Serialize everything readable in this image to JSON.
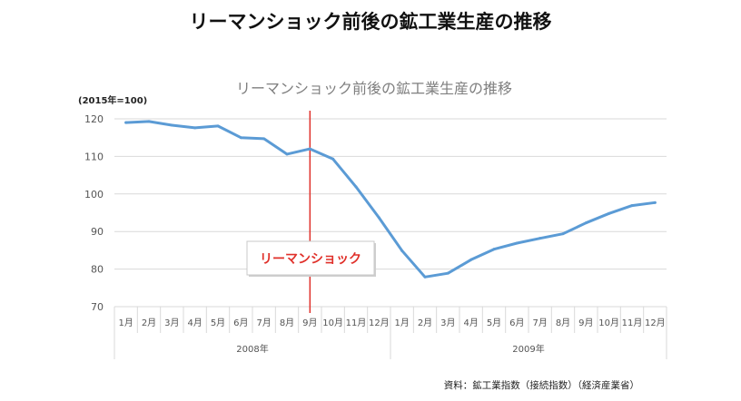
{
  "page_title": "リーマンショック前後の鉱工業生産の推移",
  "source_note": "資料：鉱工業指数（接続指数）（経済産業省）",
  "colors": {
    "line": "#5b9bd5",
    "event_line": "#e0302a",
    "annotation_text": "#e0302a",
    "grid": "#d9d9d9",
    "axis_text": "#555555"
  },
  "chart_data": {
    "type": "line",
    "title": "リーマンショック前後の鉱工業生産の推移",
    "ylabel": "(2015年=100)",
    "ylim": [
      70,
      120
    ],
    "yticks": [
      70,
      80,
      90,
      100,
      110,
      120
    ],
    "grid": true,
    "years": [
      {
        "label": "2008年",
        "months": [
          "1月",
          "2月",
          "3月",
          "4月",
          "5月",
          "6月",
          "7月",
          "8月",
          "9月",
          "10月",
          "11月",
          "12月"
        ]
      },
      {
        "label": "2009年",
        "months": [
          "1月",
          "2月",
          "3月",
          "4月",
          "5月",
          "6月",
          "7月",
          "8月",
          "9月",
          "10月",
          "11月",
          "12月"
        ]
      }
    ],
    "series": [
      {
        "values": [
          119.0,
          119.3,
          118.3,
          117.6,
          118.1,
          115.0,
          114.7,
          110.6,
          112.0,
          109.3,
          101.9,
          93.7,
          84.9,
          77.9,
          78.9,
          82.5,
          85.3,
          86.9,
          88.2,
          89.4,
          92.3,
          94.8,
          96.9,
          97.7
        ]
      }
    ],
    "annotation": {
      "label": "リーマンショック",
      "after_index": 8
    }
  }
}
